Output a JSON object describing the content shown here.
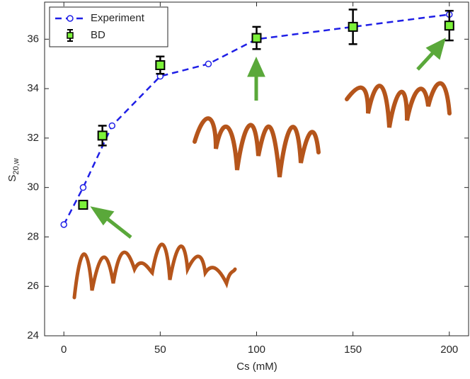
{
  "chart_data": {
    "type": "line",
    "xlabel": "Cs (mM)",
    "ylabel": "S",
    "ylabel_sub": "20,w",
    "xlim": [
      -10,
      210
    ],
    "xticks": [
      0,
      50,
      100,
      150,
      200
    ],
    "ylim": [
      24,
      37.5
    ],
    "yticks": [
      24,
      26,
      28,
      30,
      32,
      34,
      36
    ],
    "legend": "upper left",
    "series": [
      {
        "name": "Experiment",
        "color": "#1f1fe6",
        "x": [
          0,
          10,
          25,
          50,
          75,
          100,
          200
        ],
        "values": [
          28.5,
          30.0,
          32.5,
          34.5,
          35.0,
          36.0,
          37.0
        ]
      },
      {
        "name": "BD",
        "color": "#7cf23a",
        "x": [
          10,
          20,
          50,
          100,
          150,
          200
        ],
        "values": [
          29.3,
          32.1,
          34.95,
          36.05,
          36.5,
          36.55
        ],
        "errors": [
          0.15,
          0.4,
          0.35,
          0.45,
          0.7,
          0.6
        ]
      }
    ]
  }
}
